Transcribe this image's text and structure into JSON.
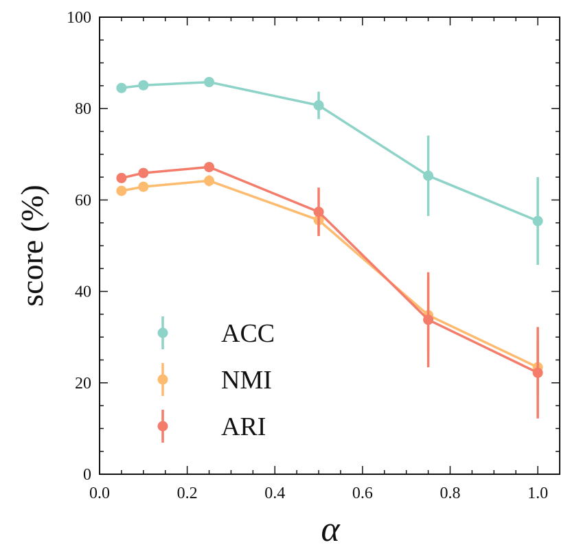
{
  "chart_data": {
    "type": "line",
    "xlabel": "α",
    "ylabel": "score (%)",
    "xlim": [
      0.0,
      1.05
    ],
    "ylim": [
      0,
      100
    ],
    "xticks": [
      "0.0",
      "0.2",
      "0.4",
      "0.6",
      "0.8",
      "1.0"
    ],
    "yticks": [
      "0",
      "20",
      "40",
      "60",
      "80",
      "100"
    ],
    "grid": false,
    "legend_position": "lower-left",
    "x": [
      0.05,
      0.1,
      0.25,
      0.5,
      0.75,
      1.0
    ],
    "series": [
      {
        "name": "ACC",
        "color": "#8dd3c7",
        "values": [
          84.5,
          85.1,
          85.8,
          80.7,
          65.3,
          55.4
        ],
        "errors": [
          0.4,
          0.4,
          0.4,
          3.0,
          8.8,
          9.6
        ]
      },
      {
        "name": "NMI",
        "color": "#fdbb6f",
        "values": [
          62.0,
          62.9,
          64.2,
          55.6,
          34.8,
          23.4
        ],
        "errors": [
          0.3,
          0.3,
          1.2,
          3.0,
          8.2,
          6.0
        ]
      },
      {
        "name": "ARI",
        "color": "#f47c6b",
        "values": [
          64.8,
          65.9,
          67.2,
          57.4,
          33.8,
          22.2
        ],
        "errors": [
          0.3,
          0.3,
          0.4,
          5.3,
          10.4,
          10.0
        ]
      }
    ]
  }
}
